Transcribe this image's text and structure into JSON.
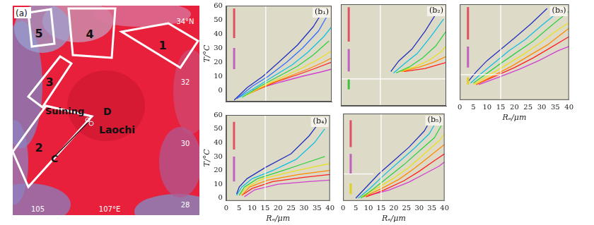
{
  "map": {
    "title": "(a)",
    "xlim": [
      104.3,
      109.5
    ],
    "ylim": [
      27.65,
      34.5
    ],
    "lat_ticks": [
      {
        "value": 34,
        "label": "34°N"
      },
      {
        "value": 32,
        "label": "32"
      },
      {
        "value": 30,
        "label": "30"
      },
      {
        "value": 28,
        "label": "28"
      }
    ],
    "lon_ticks": [
      {
        "value": 105,
        "label": "105"
      },
      {
        "value": 107,
        "label": "107°E"
      }
    ],
    "regions": [
      "1",
      "2",
      "3",
      "4",
      "5"
    ],
    "places": [
      "Suining",
      "D",
      "Laochi",
      "C"
    ]
  },
  "chart_data": [
    {
      "type": "line",
      "title": "(b₁)",
      "y_label": "T/°C",
      "xlim": [
        0,
        40
      ],
      "xticks": [
        0,
        5,
        10,
        15,
        20,
        25,
        30,
        35,
        40
      ],
      "ylim": [
        -8,
        60
      ],
      "yticks": [
        0,
        10,
        20,
        30,
        40,
        50,
        60
      ],
      "grid": false,
      "tick_labels": "y",
      "series": [
        {
          "color": "#ffffff",
          "x": [
            15,
            15
          ],
          "values": [
            -8,
            60
          ]
        },
        {
          "color": "#e05060",
          "line_style": "bold",
          "x": [
            3,
            3
          ],
          "values": [
            37,
            58
          ]
        },
        {
          "color": "#c060c0",
          "line_style": "bold",
          "x": [
            3,
            3
          ],
          "values": [
            15,
            30
          ]
        },
        {
          "color": "#2030c0",
          "x": [
            3,
            8,
            14,
            20,
            27,
            33,
            37
          ],
          "values": [
            -7,
            2,
            10,
            20,
            32,
            45,
            57
          ]
        },
        {
          "color": "#3070ff",
          "x": [
            4,
            10,
            16,
            23,
            29,
            35,
            39
          ],
          "values": [
            -6,
            3,
            10,
            20,
            30,
            42,
            55
          ]
        },
        {
          "color": "#10c0e0",
          "x": [
            5,
            12,
            18,
            25,
            31,
            37,
            40
          ],
          "values": [
            -5,
            3,
            10,
            18,
            27,
            38,
            45
          ]
        },
        {
          "color": "#30d040",
          "x": [
            6,
            13,
            20,
            27,
            33,
            39
          ],
          "values": [
            -5,
            3,
            10,
            17,
            25,
            35
          ]
        },
        {
          "color": "#e8e020",
          "x": [
            7,
            15,
            22,
            29,
            35,
            40
          ],
          "values": [
            -4,
            4,
            10,
            16,
            22,
            28
          ]
        },
        {
          "color": "#ff8a00",
          "x": [
            8,
            17,
            24,
            31,
            37,
            40
          ],
          "values": [
            -3,
            5,
            10,
            15,
            20,
            23
          ]
        },
        {
          "color": "#ff2020",
          "x": [
            9,
            19,
            27,
            33,
            40
          ],
          "values": [
            -2,
            6,
            11,
            15,
            20
          ]
        },
        {
          "color": "#d040d0",
          "x": [
            10,
            21,
            29,
            36,
            40
          ],
          "values": [
            0,
            6,
            10,
            13,
            15
          ]
        }
      ]
    },
    {
      "type": "line",
      "title": "(b₂)",
      "xlim": [
        0,
        40
      ],
      "xticks": [
        0,
        5,
        10,
        15,
        20,
        25,
        30,
        35,
        40
      ],
      "ylim": [
        -8,
        60
      ],
      "yticks": [
        0,
        10,
        20,
        30,
        40,
        50,
        60
      ],
      "grid": false,
      "tick_labels": false,
      "series": [
        {
          "color": "#ffffff",
          "x": [
            15,
            15
          ],
          "values": [
            -8,
            60
          ]
        },
        {
          "color": "#ffffff",
          "x": [
            0,
            40
          ],
          "values": [
            10,
            10
          ]
        },
        {
          "color": "#e05060",
          "line_style": "bold",
          "x": [
            3,
            3
          ],
          "values": [
            35,
            58
          ]
        },
        {
          "color": "#c060c0",
          "line_style": "bold",
          "x": [
            3,
            3
          ],
          "values": [
            15,
            30
          ]
        },
        {
          "color": "#40c040",
          "line_style": "bold",
          "x": [
            3,
            3
          ],
          "values": [
            3,
            10
          ]
        },
        {
          "color": "#2030c0",
          "x": [
            19,
            22,
            27,
            32,
            37
          ],
          "values": [
            15,
            22,
            30,
            42,
            56
          ]
        },
        {
          "color": "#10c0e0",
          "x": [
            20,
            24,
            29,
            34,
            39
          ],
          "values": [
            14,
            20,
            27,
            38,
            50
          ]
        },
        {
          "color": "#30d040",
          "x": [
            21,
            26,
            31,
            36,
            40
          ],
          "values": [
            14,
            18,
            24,
            32,
            42
          ]
        },
        {
          "color": "#e8e020",
          "x": [
            22,
            28,
            33,
            38,
            40
          ],
          "values": [
            15,
            18,
            22,
            28,
            32
          ]
        },
        {
          "color": "#ff8a00",
          "x": [
            23,
            30,
            35,
            40
          ],
          "values": [
            15,
            18,
            21,
            25
          ]
        },
        {
          "color": "#ff2020",
          "x": [
            24,
            32,
            38,
            40
          ],
          "values": [
            15,
            17,
            20,
            21
          ]
        }
      ]
    },
    {
      "type": "line",
      "title": "(b₃)",
      "x_label": "Rₑ/μm",
      "xlim": [
        0,
        40
      ],
      "xticks": [
        0,
        5,
        10,
        15,
        20,
        25,
        30,
        35,
        40
      ],
      "ylim": [
        -8,
        60
      ],
      "yticks": [
        0,
        10,
        20,
        30,
        40,
        50,
        60
      ],
      "grid": false,
      "tick_labels": "x",
      "series": [
        {
          "color": "#ffffff",
          "x": [
            15,
            15
          ],
          "values": [
            -8,
            60
          ]
        },
        {
          "color": "#ffffff",
          "x": [
            0,
            15
          ],
          "values": [
            10,
            10
          ]
        },
        {
          "color": "#e05060",
          "line_style": "bold",
          "x": [
            3,
            3
          ],
          "values": [
            35,
            58
          ]
        },
        {
          "color": "#c060c0",
          "line_style": "bold",
          "x": [
            3,
            3
          ],
          "values": [
            15,
            30
          ]
        },
        {
          "color": "#e0d020",
          "line_style": "bold",
          "x": [
            3,
            3
          ],
          "values": [
            3,
            8
          ]
        },
        {
          "color": "#2030c0",
          "x": [
            3,
            6,
            10,
            15,
            20,
            26,
            32
          ],
          "values": [
            5,
            12,
            20,
            28,
            36,
            46,
            57
          ]
        },
        {
          "color": "#10c0e0",
          "x": [
            4,
            8,
            13,
            18,
            24,
            30,
            37
          ],
          "values": [
            4,
            11,
            19,
            27,
            35,
            45,
            56
          ]
        },
        {
          "color": "#30d040",
          "x": [
            5,
            10,
            15,
            21,
            27,
            33,
            40
          ],
          "values": [
            4,
            11,
            18,
            26,
            34,
            44,
            55
          ]
        },
        {
          "color": "#e8e020",
          "x": [
            5,
            11,
            17,
            23,
            29,
            36,
            40
          ],
          "values": [
            3,
            10,
            17,
            24,
            32,
            42,
            47
          ]
        },
        {
          "color": "#ff8a00",
          "x": [
            6,
            12,
            19,
            25,
            32,
            38,
            40
          ],
          "values": [
            3,
            9,
            16,
            23,
            31,
            40,
            43
          ]
        },
        {
          "color": "#ff2020",
          "x": [
            6,
            13,
            20,
            27,
            34,
            40
          ],
          "values": [
            3,
            9,
            15,
            22,
            30,
            37
          ]
        },
        {
          "color": "#d040d0",
          "x": [
            7,
            14,
            22,
            29,
            36,
            40
          ],
          "values": [
            3,
            8,
            14,
            20,
            27,
            30
          ]
        }
      ]
    },
    {
      "type": "line",
      "title": "(b₄)",
      "x_label": "Rₑ/μm",
      "y_label": "T/°C",
      "xlim": [
        0,
        40
      ],
      "xticks": [
        0,
        5,
        10,
        15,
        20,
        25,
        30,
        35,
        40
      ],
      "ylim": [
        -2,
        60
      ],
      "yticks": [
        0,
        10,
        20,
        30,
        40,
        50,
        60
      ],
      "grid": false,
      "tick_labels": true,
      "series": [
        {
          "color": "#ffffff",
          "x": [
            15,
            15
          ],
          "values": [
            -2,
            60
          ]
        },
        {
          "color": "#e05060",
          "line_style": "bold",
          "x": [
            3,
            3
          ],
          "values": [
            35,
            55
          ]
        },
        {
          "color": "#c060c0",
          "line_style": "bold",
          "x": [
            3,
            3
          ],
          "values": [
            12,
            30
          ]
        },
        {
          "color": "#2030c0",
          "x": [
            4,
            5,
            8,
            15,
            25,
            32,
            36
          ],
          "values": [
            3,
            8,
            14,
            22,
            32,
            45,
            55
          ]
        },
        {
          "color": "#10c0e0",
          "x": [
            4,
            6,
            10,
            18,
            27,
            34,
            38
          ],
          "values": [
            2,
            8,
            14,
            20,
            28,
            40,
            50
          ]
        },
        {
          "color": "#30d040",
          "x": [
            5,
            7,
            12,
            22,
            30,
            38
          ],
          "values": [
            2,
            8,
            14,
            20,
            25,
            30
          ]
        },
        {
          "color": "#e8e020",
          "x": [
            5,
            8,
            14,
            25,
            35,
            40
          ],
          "values": [
            2,
            8,
            14,
            19,
            23,
            25
          ]
        },
        {
          "color": "#ff8a00",
          "x": [
            6,
            9,
            16,
            28,
            40
          ],
          "values": [
            2,
            8,
            13,
            17,
            20
          ]
        },
        {
          "color": "#ff2020",
          "x": [
            6,
            10,
            18,
            30,
            40
          ],
          "values": [
            2,
            7,
            12,
            15,
            17
          ]
        },
        {
          "color": "#d040d0",
          "x": [
            7,
            11,
            20,
            32,
            40
          ],
          "values": [
            1,
            6,
            10,
            12,
            13
          ]
        }
      ]
    },
    {
      "type": "line",
      "title": "(b₅)",
      "x_label": "Rₑ/μm",
      "xlim": [
        0,
        40
      ],
      "xticks": [
        0,
        5,
        10,
        15,
        20,
        25,
        30,
        35,
        40
      ],
      "ylim": [
        -5,
        60
      ],
      "yticks": [
        0,
        10,
        20,
        30,
        40,
        50,
        60
      ],
      "grid": false,
      "tick_labels": "x",
      "series": [
        {
          "color": "#ffffff",
          "x": [
            15,
            15
          ],
          "values": [
            -5,
            60
          ]
        },
        {
          "color": "#ffffff",
          "x": [
            0,
            12
          ],
          "values": [
            15,
            15
          ]
        },
        {
          "color": "#e05060",
          "line_style": "bold",
          "x": [
            3,
            3
          ],
          "values": [
            35,
            55
          ]
        },
        {
          "color": "#c060c0",
          "line_style": "bold",
          "x": [
            3,
            3
          ],
          "values": [
            15,
            30
          ]
        },
        {
          "color": "#e0d020",
          "line_style": "bold",
          "x": [
            3,
            3
          ],
          "values": [
            0,
            8
          ]
        },
        {
          "color": "#2030c0",
          "x": [
            5,
            9,
            14,
            20,
            26,
            32,
            35
          ],
          "values": [
            -3,
            5,
            15,
            25,
            35,
            47,
            57
          ]
        },
        {
          "color": "#10c0e0",
          "x": [
            6,
            11,
            16,
            22,
            28,
            34,
            37
          ],
          "values": [
            -3,
            5,
            14,
            24,
            34,
            45,
            55
          ]
        },
        {
          "color": "#30d040",
          "x": [
            7,
            12,
            18,
            24,
            30,
            36,
            39
          ],
          "values": [
            -3,
            4,
            13,
            22,
            32,
            42,
            52
          ]
        },
        {
          "color": "#e8e020",
          "x": [
            7,
            13,
            20,
            26,
            32,
            38,
            40
          ],
          "values": [
            -2,
            4,
            12,
            20,
            30,
            40,
            45
          ]
        },
        {
          "color": "#ff8a00",
          "x": [
            8,
            15,
            22,
            28,
            34,
            40
          ],
          "values": [
            -2,
            4,
            11,
            19,
            28,
            37
          ]
        },
        {
          "color": "#ff2020",
          "x": [
            9,
            16,
            24,
            30,
            36,
            40
          ],
          "values": [
            -2,
            3,
            10,
            17,
            25,
            30
          ]
        },
        {
          "color": "#d040d0",
          "x": [
            10,
            18,
            26,
            32,
            38,
            40
          ],
          "values": [
            -1,
            3,
            9,
            15,
            21,
            24
          ]
        }
      ]
    }
  ]
}
